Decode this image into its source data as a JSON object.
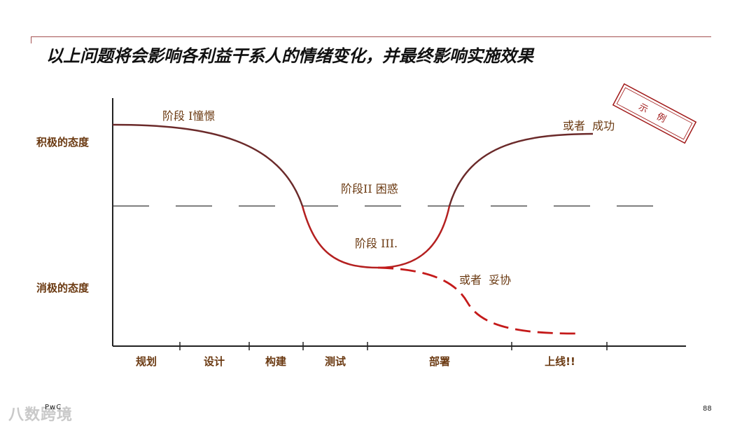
{
  "title": "以上问题将会影响各利益干系人的情绪变化，并最终影响实施效果",
  "axis": {
    "positive": "积极的态度",
    "negative": "消极的态度"
  },
  "phases": [
    "规划",
    "设计",
    "构建",
    "测试",
    "部署",
    "上线!!"
  ],
  "labels": {
    "stage1": "阶段 I憧憬",
    "stage2": "阶段II 困惑",
    "stage3": "阶段 III.",
    "success": "或者  成功",
    "compromise": "或者  妥协"
  },
  "stamp": "示 例",
  "footer": {
    "watermark": "八数跨境",
    "brand": "PwC",
    "page": "88"
  },
  "colors": {
    "curve": "#6b2a2a",
    "trough": "#b42020",
    "label": "#6b3a12",
    "stamp": "#a01818"
  }
}
